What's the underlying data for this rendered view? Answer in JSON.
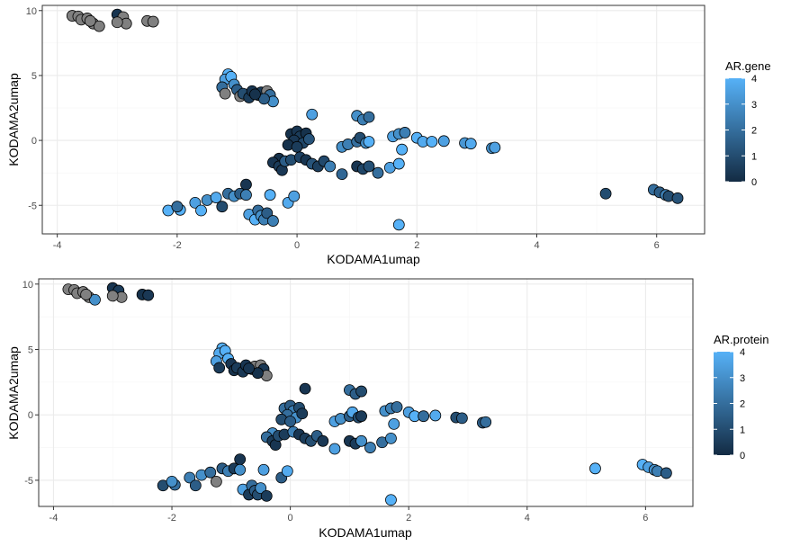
{
  "colors": {
    "low": "#132B43",
    "high": "#56B1F7",
    "na": "#808080",
    "grid_major": "#ebebeb",
    "grid_minor": "#f5f5f5",
    "panel_border": "#333333",
    "point_outline": "#000000"
  },
  "chart_data": [
    {
      "type": "scatter",
      "xlabel": "KODAMA1umap",
      "ylabel": "KODAMA2umap",
      "legend_title": "AR.gene",
      "legend_placement": "right",
      "grid": true,
      "xlim": [
        -4.25,
        6.8
      ],
      "ylim": [
        -7.2,
        10.4
      ],
      "xticks": [
        "-4",
        "-2",
        "0",
        "2",
        "4",
        "6"
      ],
      "yticks": [
        "-5",
        "0",
        "5",
        "10"
      ],
      "color_range": [
        0,
        4
      ],
      "legend_ticks": [
        "0",
        "1",
        "2",
        "3",
        "4"
      ],
      "points": [
        {
          "x": -3.75,
          "y": 9.6,
          "v": null
        },
        {
          "x": -3.65,
          "y": 9.55,
          "v": null
        },
        {
          "x": -3.6,
          "y": 9.3,
          "v": null
        },
        {
          "x": -3.5,
          "y": 9.4,
          "v": null
        },
        {
          "x": -3.4,
          "y": 9.0,
          "v": null
        },
        {
          "x": -3.3,
          "y": 8.8,
          "v": null
        },
        {
          "x": -3.45,
          "y": 9.2,
          "v": null
        },
        {
          "x": -3.0,
          "y": 9.7,
          "v": 0.3
        },
        {
          "x": -2.9,
          "y": 9.5,
          "v": null
        },
        {
          "x": -2.85,
          "y": 9.0,
          "v": null
        },
        {
          "x": -3.0,
          "y": 9.1,
          "v": null
        },
        {
          "x": -2.5,
          "y": 9.2,
          "v": null
        },
        {
          "x": -2.4,
          "y": 9.15,
          "v": null
        },
        {
          "x": -1.15,
          "y": 5.1,
          "v": 4
        },
        {
          "x": -1.2,
          "y": 4.7,
          "v": 3.5
        },
        {
          "x": -1.1,
          "y": 4.9,
          "v": 4
        },
        {
          "x": -1.05,
          "y": 4.3,
          "v": 3
        },
        {
          "x": -1.25,
          "y": 4.1,
          "v": 2
        },
        {
          "x": -1.2,
          "y": 3.6,
          "v": null
        },
        {
          "x": -1.0,
          "y": 3.9,
          "v": 1.5
        },
        {
          "x": -0.95,
          "y": 3.4,
          "v": null
        },
        {
          "x": -0.9,
          "y": 3.6,
          "v": 1
        },
        {
          "x": -0.8,
          "y": 3.3,
          "v": 0.5
        },
        {
          "x": -0.75,
          "y": 3.8,
          "v": 0.3
        },
        {
          "x": -0.65,
          "y": 3.5,
          "v": 1
        },
        {
          "x": -0.6,
          "y": 3.7,
          "v": 0.5
        },
        {
          "x": -0.5,
          "y": 3.8,
          "v": null
        },
        {
          "x": -0.45,
          "y": 3.5,
          "v": 2
        },
        {
          "x": -0.4,
          "y": 3.0,
          "v": 3
        },
        {
          "x": -0.55,
          "y": 3.2,
          "v": 1.5
        },
        {
          "x": -0.7,
          "y": 3.55,
          "v": 0.2
        },
        {
          "x": 0.25,
          "y": 2.0,
          "v": 3.5
        },
        {
          "x": -0.1,
          "y": 0.5,
          "v": 0.2
        },
        {
          "x": 0.0,
          "y": 0.7,
          "v": 0.3
        },
        {
          "x": 0.05,
          "y": 0.3,
          "v": 0.5
        },
        {
          "x": 0.15,
          "y": 0.55,
          "v": 0.2
        },
        {
          "x": -0.05,
          "y": 0.0,
          "v": 0.4
        },
        {
          "x": 0.1,
          "y": -0.2,
          "v": 0.8
        },
        {
          "x": 0.2,
          "y": 0.1,
          "v": 1.2
        },
        {
          "x": -0.15,
          "y": -0.35,
          "v": 0.2
        },
        {
          "x": 0.0,
          "y": -0.5,
          "v": 0.5
        },
        {
          "x": -0.3,
          "y": -1.4,
          "v": 0.2
        },
        {
          "x": -0.4,
          "y": -1.7,
          "v": 0.3
        },
        {
          "x": -0.3,
          "y": -2.0,
          "v": 0.5
        },
        {
          "x": -0.25,
          "y": -2.3,
          "v": 0.4
        },
        {
          "x": -0.2,
          "y": -1.6,
          "v": 1.5
        },
        {
          "x": -0.1,
          "y": -1.5,
          "v": 1
        },
        {
          "x": 0.05,
          "y": -1.3,
          "v": 0.7
        },
        {
          "x": 0.15,
          "y": -1.5,
          "v": 0.3
        },
        {
          "x": 0.25,
          "y": -1.8,
          "v": 1.2
        },
        {
          "x": 0.35,
          "y": -2.0,
          "v": 0.6
        },
        {
          "x": 0.45,
          "y": -1.6,
          "v": 0.9
        },
        {
          "x": 0.55,
          "y": -2.0,
          "v": 2.5
        },
        {
          "x": 0.75,
          "y": -2.6,
          "v": 1.8
        },
        {
          "x": 1.0,
          "y": -2.0,
          "v": 0.3
        },
        {
          "x": 1.1,
          "y": -2.2,
          "v": 0.8
        },
        {
          "x": 1.2,
          "y": -2.0,
          "v": 1.1
        },
        {
          "x": 1.35,
          "y": -2.5,
          "v": 2
        },
        {
          "x": 1.55,
          "y": -2.1,
          "v": 3.5
        },
        {
          "x": 1.7,
          "y": -1.8,
          "v": 4
        },
        {
          "x": 0.75,
          "y": -0.5,
          "v": 3
        },
        {
          "x": 0.85,
          "y": -0.3,
          "v": 2.5
        },
        {
          "x": 1.0,
          "y": -0.1,
          "v": 2
        },
        {
          "x": 1.05,
          "y": 0.2,
          "v": 1
        },
        {
          "x": 1.15,
          "y": -0.2,
          "v": 3
        },
        {
          "x": 1.2,
          "y": -0.1,
          "v": 4
        },
        {
          "x": 1.0,
          "y": 1.9,
          "v": 3
        },
        {
          "x": 1.1,
          "y": 1.6,
          "v": 2.5
        },
        {
          "x": 1.2,
          "y": 1.8,
          "v": 2
        },
        {
          "x": 1.6,
          "y": 0.3,
          "v": 3.5
        },
        {
          "x": 1.7,
          "y": 0.5,
          "v": 3
        },
        {
          "x": 1.8,
          "y": 0.6,
          "v": 2.5
        },
        {
          "x": 1.75,
          "y": -0.7,
          "v": 4
        },
        {
          "x": 2.0,
          "y": 0.2,
          "v": 4
        },
        {
          "x": 2.1,
          "y": -0.1,
          "v": 3.8
        },
        {
          "x": 2.25,
          "y": -0.1,
          "v": 4
        },
        {
          "x": 2.45,
          "y": -0.05,
          "v": 3.5
        },
        {
          "x": 2.8,
          "y": -0.2,
          "v": 3.2
        },
        {
          "x": 2.9,
          "y": -0.25,
          "v": 3.8
        },
        {
          "x": 3.25,
          "y": -0.6,
          "v": 3
        },
        {
          "x": 3.3,
          "y": -0.55,
          "v": 3.5
        },
        {
          "x": -2.15,
          "y": -5.4,
          "v": 4
        },
        {
          "x": -1.95,
          "y": -5.35,
          "v": 4
        },
        {
          "x": -2.0,
          "y": -5.1,
          "v": 2
        },
        {
          "x": -1.7,
          "y": -4.8,
          "v": 3.5
        },
        {
          "x": -1.6,
          "y": -5.4,
          "v": 4
        },
        {
          "x": -1.5,
          "y": -4.6,
          "v": 3
        },
        {
          "x": -1.35,
          "y": -4.4,
          "v": 3.8
        },
        {
          "x": -1.25,
          "y": -5.1,
          "v": 1
        },
        {
          "x": -1.15,
          "y": -4.1,
          "v": 2
        },
        {
          "x": -1.05,
          "y": -4.3,
          "v": 3
        },
        {
          "x": -0.95,
          "y": -4.1,
          "v": 1.5
        },
        {
          "x": -0.85,
          "y": -3.4,
          "v": 0.3
        },
        {
          "x": -0.85,
          "y": -4.2,
          "v": 2.5
        },
        {
          "x": -0.8,
          "y": -5.7,
          "v": 3.5
        },
        {
          "x": -0.7,
          "y": -6.1,
          "v": 4
        },
        {
          "x": -0.65,
          "y": -5.4,
          "v": 2
        },
        {
          "x": -0.6,
          "y": -5.8,
          "v": 3
        },
        {
          "x": -0.55,
          "y": -6.1,
          "v": 2.5
        },
        {
          "x": -0.5,
          "y": -5.6,
          "v": 1.5
        },
        {
          "x": -0.4,
          "y": -6.2,
          "v": 2.5
        },
        {
          "x": -0.45,
          "y": -4.2,
          "v": 4
        },
        {
          "x": -0.15,
          "y": -4.8,
          "v": 3.8
        },
        {
          "x": -0.05,
          "y": -4.3,
          "v": 3.5
        },
        {
          "x": 1.7,
          "y": -6.5,
          "v": 4
        },
        {
          "x": 5.15,
          "y": -4.1,
          "v": 1
        },
        {
          "x": 5.95,
          "y": -3.8,
          "v": 2
        },
        {
          "x": 6.05,
          "y": -4.0,
          "v": 1.5
        },
        {
          "x": 6.15,
          "y": -4.2,
          "v": 2.5
        },
        {
          "x": 6.2,
          "y": -4.3,
          "v": 1
        },
        {
          "x": 6.35,
          "y": -4.45,
          "v": 1.2
        }
      ]
    },
    {
      "type": "scatter",
      "xlabel": "KODAMA1umap",
      "ylabel": "KODAMA2umap",
      "legend_title": "AR.protein",
      "legend_placement": "right",
      "grid": true,
      "xlim": [
        -4.25,
        6.8
      ],
      "ylim": [
        -7.0,
        10.4
      ],
      "xticks": [
        "-4",
        "-2",
        "0",
        "2",
        "4",
        "6"
      ],
      "yticks": [
        "-5",
        "0",
        "5",
        "10"
      ],
      "color_range": [
        0,
        4
      ],
      "legend_ticks": [
        "0",
        "1",
        "2",
        "3",
        "4"
      ],
      "points": [
        {
          "x": -3.75,
          "y": 9.6,
          "v": null
        },
        {
          "x": -3.65,
          "y": 9.55,
          "v": null
        },
        {
          "x": -3.6,
          "y": 9.3,
          "v": null
        },
        {
          "x": -3.5,
          "y": 9.4,
          "v": null
        },
        {
          "x": -3.4,
          "y": 9.0,
          "v": null
        },
        {
          "x": -3.3,
          "y": 8.8,
          "v": 3
        },
        {
          "x": -3.45,
          "y": 9.2,
          "v": null
        },
        {
          "x": -3.0,
          "y": 9.7,
          "v": 0.3
        },
        {
          "x": -2.9,
          "y": 9.5,
          "v": 0.5
        },
        {
          "x": -2.85,
          "y": 9.0,
          "v": null
        },
        {
          "x": -3.0,
          "y": 9.1,
          "v": null
        },
        {
          "x": -2.5,
          "y": 9.2,
          "v": 0.2
        },
        {
          "x": -2.4,
          "y": 9.15,
          "v": 0.4
        },
        {
          "x": -1.15,
          "y": 5.1,
          "v": 4
        },
        {
          "x": -1.2,
          "y": 4.7,
          "v": 3.8
        },
        {
          "x": -1.1,
          "y": 4.9,
          "v": 4
        },
        {
          "x": -1.05,
          "y": 4.3,
          "v": 4
        },
        {
          "x": -1.25,
          "y": 4.1,
          "v": 3.5
        },
        {
          "x": -1.2,
          "y": 3.6,
          "v": 0.5
        },
        {
          "x": -1.0,
          "y": 3.9,
          "v": 0.3
        },
        {
          "x": -0.95,
          "y": 3.4,
          "v": 0.2
        },
        {
          "x": -0.9,
          "y": 3.6,
          "v": 0.5
        },
        {
          "x": -0.8,
          "y": 3.3,
          "v": 0.4
        },
        {
          "x": -0.75,
          "y": 3.8,
          "v": 0.3
        },
        {
          "x": -0.65,
          "y": 3.5,
          "v": 0.5
        },
        {
          "x": -0.6,
          "y": 3.7,
          "v": null
        },
        {
          "x": -0.5,
          "y": 3.8,
          "v": null
        },
        {
          "x": -0.45,
          "y": 3.5,
          "v": 0.4
        },
        {
          "x": -0.4,
          "y": 3.0,
          "v": null
        },
        {
          "x": -0.55,
          "y": 3.2,
          "v": 0.2
        },
        {
          "x": -0.7,
          "y": 3.55,
          "v": 0.3
        },
        {
          "x": 0.25,
          "y": 2.0,
          "v": 0.3
        },
        {
          "x": -0.1,
          "y": 0.5,
          "v": 2
        },
        {
          "x": 0.0,
          "y": 0.7,
          "v": 1.5
        },
        {
          "x": 0.05,
          "y": 0.3,
          "v": 2.5
        },
        {
          "x": 0.15,
          "y": 0.55,
          "v": 1
        },
        {
          "x": -0.05,
          "y": 0.0,
          "v": 2
        },
        {
          "x": 0.1,
          "y": -0.2,
          "v": 3
        },
        {
          "x": 0.2,
          "y": 0.1,
          "v": 0.5
        },
        {
          "x": -0.15,
          "y": -0.35,
          "v": 1
        },
        {
          "x": 0.0,
          "y": -0.5,
          "v": 1.5
        },
        {
          "x": -0.3,
          "y": -1.4,
          "v": 3
        },
        {
          "x": -0.4,
          "y": -1.7,
          "v": 2
        },
        {
          "x": -0.3,
          "y": -2.0,
          "v": 0.5
        },
        {
          "x": -0.25,
          "y": -2.3,
          "v": 0.3
        },
        {
          "x": -0.2,
          "y": -1.6,
          "v": 1
        },
        {
          "x": -0.1,
          "y": -1.5,
          "v": 0.5
        },
        {
          "x": 0.05,
          "y": -1.3,
          "v": 2.5
        },
        {
          "x": 0.15,
          "y": -1.5,
          "v": 0.3
        },
        {
          "x": 0.25,
          "y": -1.8,
          "v": 0.5
        },
        {
          "x": 0.35,
          "y": -2.0,
          "v": 1
        },
        {
          "x": 0.45,
          "y": -1.6,
          "v": 1.5
        },
        {
          "x": 0.55,
          "y": -2.0,
          "v": 0.4
        },
        {
          "x": 0.75,
          "y": -2.6,
          "v": 3.5
        },
        {
          "x": 1.0,
          "y": -2.0,
          "v": 0.3
        },
        {
          "x": 1.1,
          "y": -2.2,
          "v": 0.5
        },
        {
          "x": 1.2,
          "y": -2.0,
          "v": 3
        },
        {
          "x": 1.35,
          "y": -2.5,
          "v": 2.5
        },
        {
          "x": 1.55,
          "y": -2.1,
          "v": 2
        },
        {
          "x": 1.7,
          "y": -1.8,
          "v": 3
        },
        {
          "x": 0.75,
          "y": -0.5,
          "v": 3.5
        },
        {
          "x": 0.85,
          "y": -0.3,
          "v": 3
        },
        {
          "x": 1.0,
          "y": -0.1,
          "v": 1.5
        },
        {
          "x": 1.05,
          "y": 0.2,
          "v": 3.8
        },
        {
          "x": 1.15,
          "y": -0.2,
          "v": 1
        },
        {
          "x": 1.2,
          "y": -0.1,
          "v": 0.5
        },
        {
          "x": 1.0,
          "y": 1.9,
          "v": 2
        },
        {
          "x": 1.1,
          "y": 1.6,
          "v": 1.5
        },
        {
          "x": 1.2,
          "y": 1.8,
          "v": 1
        },
        {
          "x": 1.6,
          "y": 0.3,
          "v": 3
        },
        {
          "x": 1.7,
          "y": 0.5,
          "v": 2.5
        },
        {
          "x": 1.8,
          "y": 0.6,
          "v": 2
        },
        {
          "x": 1.75,
          "y": -0.7,
          "v": 3.5
        },
        {
          "x": 2.0,
          "y": 0.2,
          "v": 3.5
        },
        {
          "x": 2.1,
          "y": -0.1,
          "v": 4
        },
        {
          "x": 2.25,
          "y": -0.1,
          "v": 2
        },
        {
          "x": 2.45,
          "y": -0.05,
          "v": 3.8
        },
        {
          "x": 2.8,
          "y": -0.2,
          "v": 1
        },
        {
          "x": 2.9,
          "y": -0.25,
          "v": 1.5
        },
        {
          "x": 3.25,
          "y": -0.6,
          "v": 1.5
        },
        {
          "x": 3.3,
          "y": -0.55,
          "v": 2
        },
        {
          "x": -2.15,
          "y": -5.4,
          "v": 1
        },
        {
          "x": -1.95,
          "y": -5.35,
          "v": 2
        },
        {
          "x": -2.0,
          "y": -5.1,
          "v": 3
        },
        {
          "x": -1.7,
          "y": -4.8,
          "v": 2.5
        },
        {
          "x": -1.6,
          "y": -5.4,
          "v": 1.5
        },
        {
          "x": -1.5,
          "y": -4.6,
          "v": 3
        },
        {
          "x": -1.35,
          "y": -4.4,
          "v": 2
        },
        {
          "x": -1.25,
          "y": -5.1,
          "v": null
        },
        {
          "x": -1.15,
          "y": -4.1,
          "v": 1.5
        },
        {
          "x": -1.05,
          "y": -4.3,
          "v": 2.5
        },
        {
          "x": -0.95,
          "y": -4.1,
          "v": 0.5
        },
        {
          "x": -0.85,
          "y": -3.4,
          "v": 0.3
        },
        {
          "x": -0.85,
          "y": -4.2,
          "v": 3
        },
        {
          "x": -0.8,
          "y": -5.7,
          "v": 3.5
        },
        {
          "x": -0.7,
          "y": -6.1,
          "v": 0.5
        },
        {
          "x": -0.65,
          "y": -5.4,
          "v": 2
        },
        {
          "x": -0.6,
          "y": -5.8,
          "v": 1.5
        },
        {
          "x": -0.55,
          "y": -6.1,
          "v": 1
        },
        {
          "x": -0.5,
          "y": -5.6,
          "v": 3
        },
        {
          "x": -0.4,
          "y": -6.2,
          "v": 0.5
        },
        {
          "x": -0.45,
          "y": -4.2,
          "v": 3.5
        },
        {
          "x": -0.15,
          "y": -4.8,
          "v": 1.5
        },
        {
          "x": -0.05,
          "y": -4.3,
          "v": 3.8
        },
        {
          "x": 1.7,
          "y": -6.5,
          "v": 4
        },
        {
          "x": 5.15,
          "y": -4.1,
          "v": 4
        },
        {
          "x": 5.95,
          "y": -3.8,
          "v": 4
        },
        {
          "x": 6.05,
          "y": -4.0,
          "v": 3.5
        },
        {
          "x": 6.15,
          "y": -4.2,
          "v": 3
        },
        {
          "x": 6.2,
          "y": -4.3,
          "v": 2.5
        },
        {
          "x": 6.35,
          "y": -4.45,
          "v": 1.5
        }
      ]
    }
  ]
}
